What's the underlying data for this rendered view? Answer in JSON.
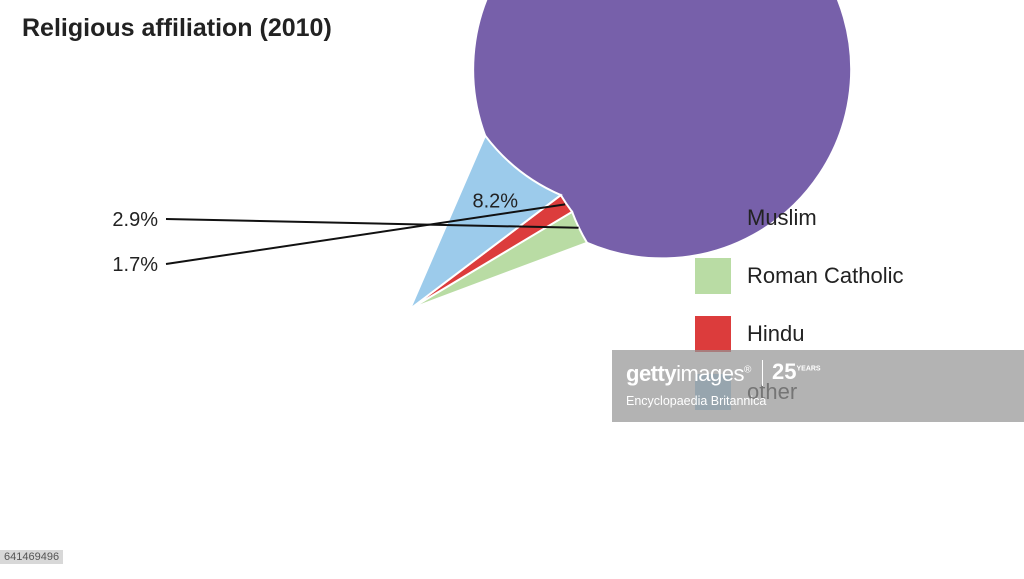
{
  "chart_data": {
    "type": "pie",
    "title": "Religious affiliation (2010)",
    "series": [
      {
        "name": "Muslim",
        "value": 87.2,
        "label": "87.2%",
        "color": "#7760aa"
      },
      {
        "name": "Roman Catholic",
        "value": 2.9,
        "label": "2.9%",
        "color": "#b9dca4"
      },
      {
        "name": "Hindu",
        "value": 1.7,
        "label": "1.7%",
        "color": "#dc3c3c"
      },
      {
        "name": "other",
        "value": 8.2,
        "label": "8.2%",
        "color": "#9ccbeb"
      }
    ],
    "legend_position": "right"
  },
  "watermark": {
    "logo_bold": "getty",
    "logo_light": "images",
    "trademark": "®",
    "years": "25",
    "years_word": "YEARS",
    "credit": "Encyclopaedia Britannica"
  },
  "image_id": "641469496"
}
